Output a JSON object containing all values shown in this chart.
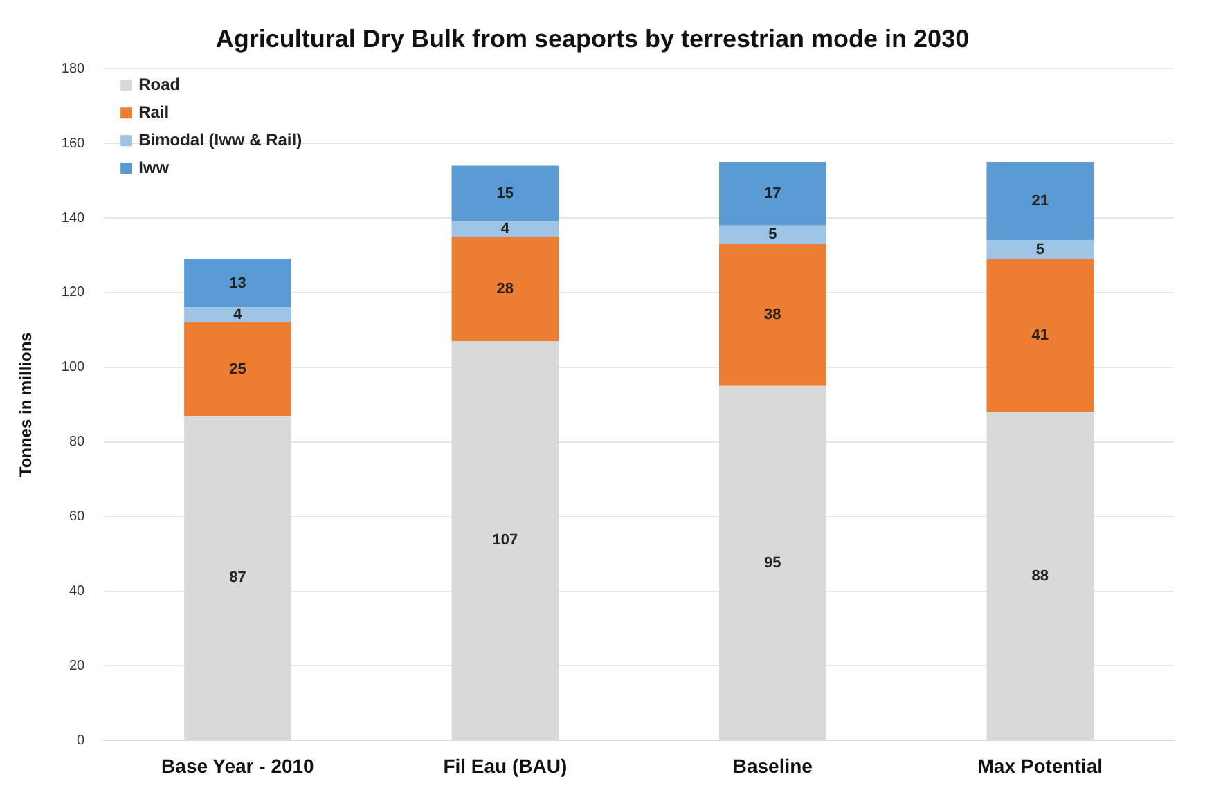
{
  "chart_data": {
    "type": "bar",
    "title": "Agricultural Dry Bulk from seaports by terrestrian mode in 2030",
    "ylabel": "Tonnes in millions",
    "categories": [
      "Base Year - 2010",
      "Fil Eau (BAU)",
      "Baseline",
      "Max Potential"
    ],
    "series": [
      {
        "name": "Road",
        "color": "#d9d9d9",
        "values": [
          87,
          107,
          95,
          88
        ]
      },
      {
        "name": "Rail",
        "color": "#ed7d31",
        "values": [
          25,
          28,
          38,
          41
        ]
      },
      {
        "name": "Bimodal (Iww & Rail)",
        "color": "#9dc3e6",
        "values": [
          4,
          4,
          5,
          5
        ]
      },
      {
        "name": "Iww",
        "color": "#5b9bd5",
        "values": [
          13,
          15,
          17,
          21
        ]
      }
    ],
    "stacked": true,
    "ylim": [
      0,
      180
    ],
    "yticks": [
      0,
      20,
      40,
      60,
      80,
      100,
      120,
      140,
      160,
      180
    ],
    "grid": "y",
    "legend": "top left",
    "data_labels": true
  }
}
